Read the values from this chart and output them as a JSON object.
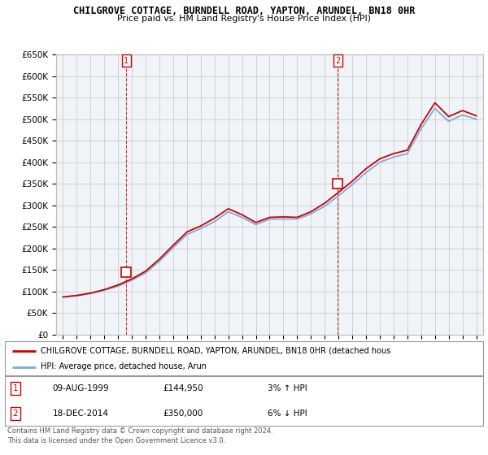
{
  "title": "CHILGROVE COTTAGE, BURNDELL ROAD, YAPTON, ARUNDEL, BN18 0HR",
  "subtitle": "Price paid vs. HM Land Registry's House Price Index (HPI)",
  "legend_line1": "CHILGROVE COTTAGE, BURNDELL ROAD, YAPTON, ARUNDEL, BN18 0HR (detached hous",
  "legend_line2": "HPI: Average price, detached house, Arun",
  "annotation1_label": "1",
  "annotation1_date": "09-AUG-1999",
  "annotation1_price": "£144,950",
  "annotation1_hpi": "3% ↑ HPI",
  "annotation2_label": "2",
  "annotation2_date": "18-DEC-2014",
  "annotation2_price": "£350,000",
  "annotation2_hpi": "6% ↓ HPI",
  "footer": "Contains HM Land Registry data © Crown copyright and database right 2024.\nThis data is licensed under the Open Government Licence v3.0.",
  "ylim": [
    0,
    650000
  ],
  "yticks": [
    0,
    50000,
    100000,
    150000,
    200000,
    250000,
    300000,
    350000,
    400000,
    450000,
    500000,
    550000,
    600000,
    650000
  ],
  "ytick_labels": [
    "£0",
    "£50K",
    "£100K",
    "£150K",
    "£200K",
    "£250K",
    "£300K",
    "£350K",
    "£400K",
    "£450K",
    "£500K",
    "£550K",
    "£600K",
    "£650K"
  ],
  "red_color": "#cc0000",
  "blue_color": "#7aaddc",
  "background_color": "#ffffff",
  "chart_bg_color": "#f0f4f8",
  "grid_color": "#cccccc",
  "years": [
    1995,
    1996,
    1997,
    1998,
    1999,
    2000,
    2001,
    2002,
    2003,
    2004,
    2005,
    2006,
    2007,
    2008,
    2009,
    2010,
    2011,
    2012,
    2013,
    2014,
    2015,
    2016,
    2017,
    2018,
    2019,
    2020,
    2021,
    2022,
    2023,
    2024,
    2025
  ],
  "hpi_values": [
    87000,
    90000,
    95000,
    103000,
    112000,
    126000,
    143000,
    170000,
    202000,
    232000,
    246000,
    262000,
    285000,
    272000,
    255000,
    268000,
    268000,
    268000,
    280000,
    298000,
    322000,
    348000,
    376000,
    400000,
    412000,
    420000,
    478000,
    525000,
    495000,
    510000,
    500000
  ],
  "price_values": [
    87000,
    90500,
    96000,
    104000,
    115000,
    129000,
    147000,
    175000,
    207000,
    238000,
    252000,
    270000,
    292000,
    278000,
    260000,
    272000,
    273000,
    272000,
    285000,
    305000,
    330000,
    356000,
    385000,
    408000,
    420000,
    428000,
    488000,
    538000,
    506000,
    520000,
    508000
  ],
  "ann1_x": 1999.6,
  "ann1_y": 144950,
  "ann2_x": 2014.95,
  "ann2_y": 350000,
  "xlim_left": 1994.5,
  "xlim_right": 2025.5
}
